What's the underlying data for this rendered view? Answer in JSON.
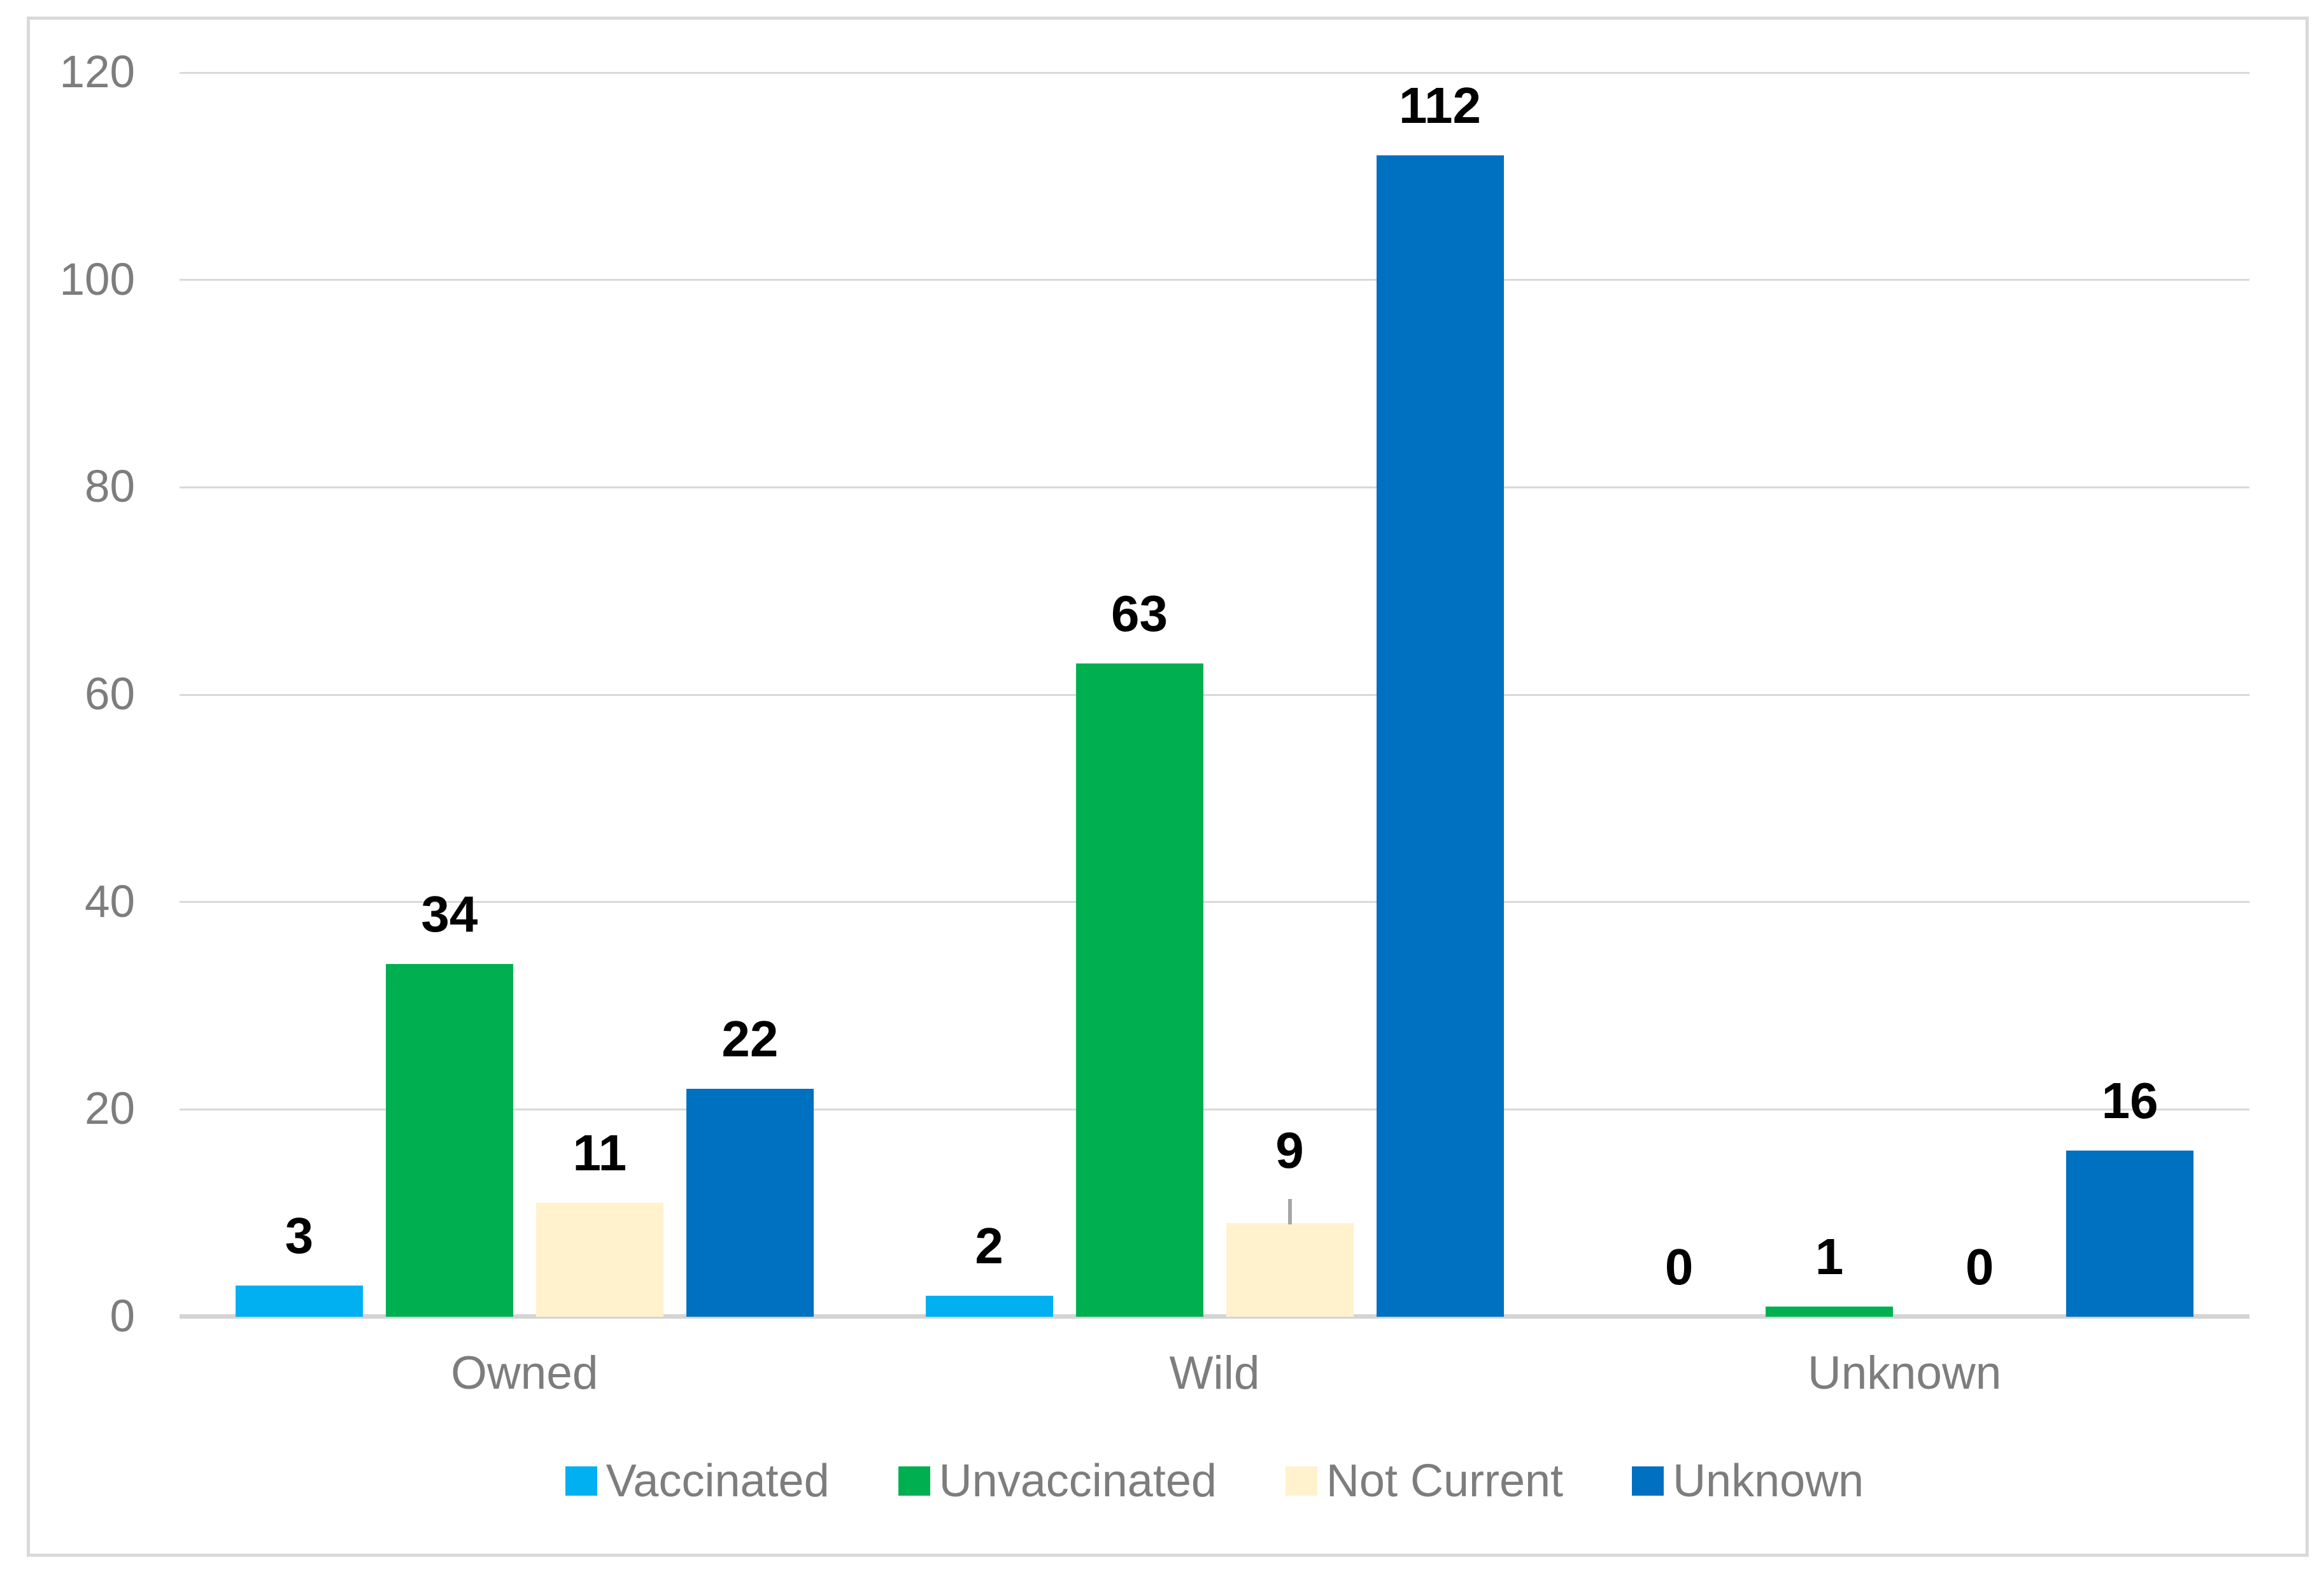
{
  "chart_data": {
    "type": "bar",
    "title": "",
    "xlabel": "",
    "ylabel": "",
    "categories": [
      "Owned",
      "Wild",
      "Unknown"
    ],
    "series": [
      {
        "name": "Vaccinated",
        "color": "#00B0F0",
        "values": [
          3,
          2,
          0
        ]
      },
      {
        "name": "Unvaccinated",
        "color": "#00B050",
        "values": [
          34,
          63,
          1
        ]
      },
      {
        "name": "Not Current",
        "color": "#FFF2CC",
        "values": [
          11,
          9,
          0
        ]
      },
      {
        "name": "Unknown",
        "color": "#0070C0",
        "values": [
          22,
          112,
          16
        ]
      }
    ],
    "data_labels": [
      [
        "3",
        "2",
        "0"
      ],
      [
        "34",
        "63",
        "1"
      ],
      [
        "11",
        "9",
        "0"
      ],
      [
        "22",
        "112",
        "16"
      ]
    ],
    "yticks": [
      "0",
      "20",
      "40",
      "60",
      "80",
      "100",
      "120"
    ],
    "ylim": [
      0,
      120
    ],
    "grid": true,
    "legend_position": "bottom-center",
    "moved_label": {
      "series": "Not Current",
      "category": "Wild",
      "leader_line": true
    }
  },
  "colors": {
    "gridline": "#D9D9D9",
    "axis_line": "#D4D4D4",
    "chart_border": "#D9D9D9",
    "tick_text": "#7D7D7D",
    "category_text": "#7D7D7D",
    "legend_text": "#7D7D7D",
    "data_label_text": "#000000",
    "leader_line": "#A6A6A6",
    "background": "#FFFFFF"
  }
}
